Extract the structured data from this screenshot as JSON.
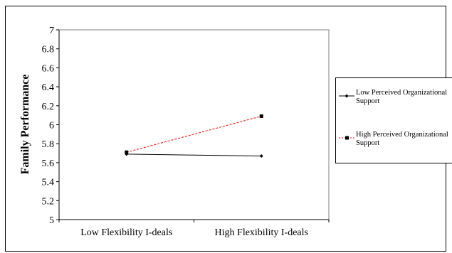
{
  "chart_data": {
    "type": "line",
    "title": "",
    "xlabel": "",
    "ylabel": "Family Performance",
    "categories": [
      "Low Flexibility I-deals",
      "High Flexibility I-deals"
    ],
    "ylim": [
      5,
      7
    ],
    "yticks": [
      "5",
      "5.2",
      "5.4",
      "5.6",
      "5.8",
      "6",
      "6.2",
      "6.4",
      "6.6",
      "6.8",
      "7"
    ],
    "grid": false,
    "legend_position": "right",
    "series": [
      {
        "name": "Low Perceived Organizational Support",
        "values": [
          5.69,
          5.67
        ],
        "color": "#000000",
        "dash": "solid",
        "marker": "diamond"
      },
      {
        "name": "High Perceived Organizational Support",
        "values": [
          5.71,
          6.09
        ],
        "color": "#ff0000",
        "dash": "dashed",
        "marker": "square"
      }
    ]
  }
}
